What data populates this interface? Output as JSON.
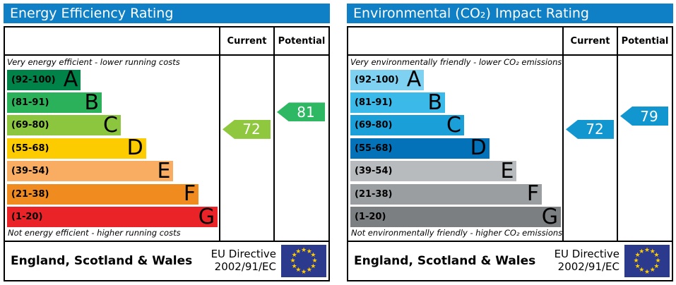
{
  "page": {
    "colors": {
      "header_bar": "#0f80c6",
      "header_text": "#ffffff",
      "eu_flag_blue": "#2b3a8c",
      "eu_star": "#ffcc00"
    },
    "eu_star_count": 12
  },
  "chart_data": [
    {
      "type": "bar",
      "title": "Energy Efficiency Rating",
      "columns": {
        "current_label": "Current",
        "potential_label": "Potential"
      },
      "caption_top": "Very energy efficient - lower running costs",
      "caption_bottom": "Not energy efficient - higher running costs",
      "bands": [
        {
          "grade": "A",
          "range_label": "(92-100)",
          "min": 92,
          "max": 100,
          "color": "#008349",
          "width_pct": 35
        },
        {
          "grade": "B",
          "range_label": "(81-91)",
          "min": 81,
          "max": 91,
          "color": "#2bb159",
          "width_pct": 45
        },
        {
          "grade": "C",
          "range_label": "(69-80)",
          "min": 69,
          "max": 80,
          "color": "#8cc63f",
          "width_pct": 54
        },
        {
          "grade": "D",
          "range_label": "(55-68)",
          "min": 55,
          "max": 68,
          "color": "#fccb00",
          "width_pct": 66
        },
        {
          "grade": "E",
          "range_label": "(39-54)",
          "min": 39,
          "max": 54,
          "color": "#f9ad63",
          "width_pct": 79
        },
        {
          "grade": "F",
          "range_label": "(21-38)",
          "min": 21,
          "max": 38,
          "color": "#f08b20",
          "width_pct": 91
        },
        {
          "grade": "G",
          "range_label": "(1-20)",
          "min": 1,
          "max": 20,
          "color": "#ea2328",
          "width_pct": 100
        }
      ],
      "current": {
        "value": 72,
        "band": "C",
        "color": "#8fc73e"
      },
      "potential": {
        "value": 81,
        "band": "B",
        "color": "#2eb863"
      },
      "footer": {
        "region": "England, Scotland & Wales",
        "directive_line1": "EU Directive",
        "directive_line2": "2002/91/EC"
      }
    },
    {
      "type": "bar",
      "title": "Environmental (CO₂) Impact Rating",
      "columns": {
        "current_label": "Current",
        "potential_label": "Potential"
      },
      "caption_top": "Very environmentally friendly - lower CO₂ emissions",
      "caption_bottom": "Not environmentally friendly - higher CO₂ emissions",
      "bands": [
        {
          "grade": "A",
          "range_label": "(92-100)",
          "min": 92,
          "max": 100,
          "color": "#7fd1f1",
          "width_pct": 35
        },
        {
          "grade": "B",
          "range_label": "(81-91)",
          "min": 81,
          "max": 91,
          "color": "#3bb9e8",
          "width_pct": 45
        },
        {
          "grade": "C",
          "range_label": "(69-80)",
          "min": 69,
          "max": 80,
          "color": "#1b9fd8",
          "width_pct": 54
        },
        {
          "grade": "D",
          "range_label": "(55-68)",
          "min": 55,
          "max": 68,
          "color": "#0472b8",
          "width_pct": 66
        },
        {
          "grade": "E",
          "range_label": "(39-54)",
          "min": 39,
          "max": 54,
          "color": "#b8bbbd",
          "width_pct": 79
        },
        {
          "grade": "F",
          "range_label": "(21-38)",
          "min": 21,
          "max": 38,
          "color": "#9b9ea1",
          "width_pct": 91
        },
        {
          "grade": "G",
          "range_label": "(1-20)",
          "min": 1,
          "max": 20,
          "color": "#7c7f82",
          "width_pct": 100
        }
      ],
      "current": {
        "value": 72,
        "band": "C",
        "color": "#1296cf"
      },
      "potential": {
        "value": 79,
        "band": "C",
        "color": "#1296cf"
      },
      "footer": {
        "region": "England, Scotland & Wales",
        "directive_line1": "EU Directive",
        "directive_line2": "2002/91/EC"
      }
    }
  ]
}
